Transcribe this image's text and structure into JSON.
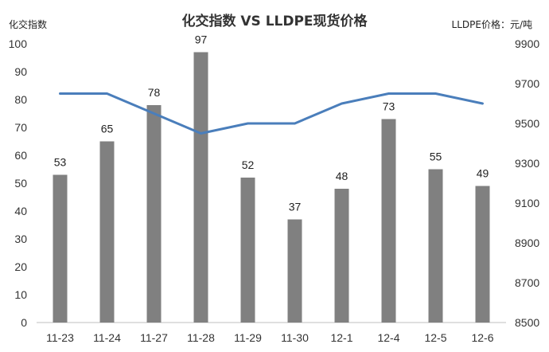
{
  "chart_data": {
    "type": "bar+line",
    "title": "化交指数 VS LLDPE现货价格",
    "ylabel_left": "化交指数",
    "ylabel_right": "LLDPE价格：元/吨",
    "categories": [
      "11-23",
      "11-24",
      "11-27",
      "11-28",
      "11-29",
      "11-30",
      "12-1",
      "12-4",
      "12-5",
      "12-6"
    ],
    "series": [
      {
        "type": "bar",
        "axis": "left",
        "values": [
          53,
          65,
          78,
          97,
          52,
          37,
          48,
          73,
          55,
          49
        ],
        "color": "#808080",
        "data_labels": true
      },
      {
        "type": "line",
        "axis": "right",
        "values": [
          9650,
          9650,
          9550,
          9450,
          9500,
          9500,
          9600,
          9650,
          9650,
          9600
        ],
        "color": "#4a7ebb"
      }
    ],
    "ylim_left": [
      0,
      100
    ],
    "yticks_left": [
      0,
      10,
      20,
      30,
      40,
      50,
      60,
      70,
      80,
      90,
      100
    ],
    "ylim_right": [
      8500,
      9900
    ],
    "yticks_right": [
      8500,
      8700,
      8900,
      9100,
      9300,
      9500,
      9700,
      9900
    ],
    "grid": false,
    "legend": "none"
  }
}
